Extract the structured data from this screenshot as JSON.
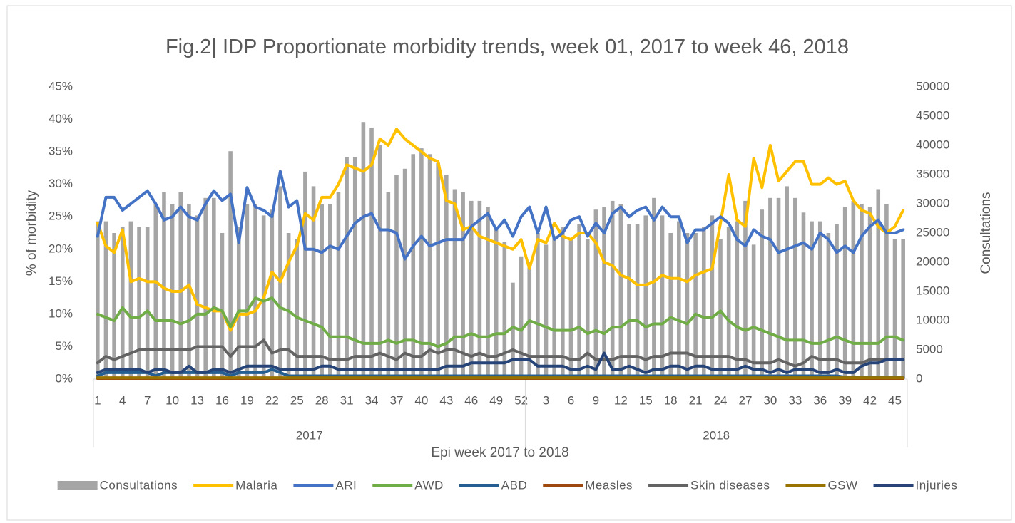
{
  "chart_data": {
    "type": "combo",
    "title": "Fig.2| IDP Proportionate morbidity trends, week 01, 2017 to week 46, 2018",
    "x_label": "Epi week 2017 to 2018",
    "y_label": "% of morbidity",
    "y2_label": "Consultations",
    "groups": [
      {
        "name": "2017",
        "categories": [
          1,
          null,
          null,
          4,
          null,
          null,
          7,
          null,
          null,
          10,
          null,
          null,
          13,
          null,
          null,
          16,
          null,
          null,
          19,
          null,
          null,
          22,
          null,
          null,
          25,
          null,
          null,
          28,
          null,
          null,
          31,
          null,
          null,
          34,
          null,
          null,
          37,
          null,
          null,
          40,
          null,
          null,
          43,
          null,
          null,
          46,
          null,
          null,
          49,
          null,
          null,
          52
        ]
      },
      {
        "name": "2018",
        "categories": [
          null,
          null,
          3,
          null,
          null,
          6,
          null,
          null,
          9,
          null,
          null,
          12,
          null,
          null,
          15,
          null,
          null,
          18,
          null,
          null,
          21,
          null,
          null,
          24,
          null,
          null,
          27,
          null,
          null,
          30,
          null,
          null,
          33,
          null,
          null,
          36,
          null,
          null,
          39,
          null,
          null,
          42,
          null,
          null,
          45,
          null
        ]
      }
    ],
    "ylim": [
      0,
      45
    ],
    "yticks": [
      {
        "value": 0,
        "label": "0%"
      },
      {
        "value": 5,
        "label": "5%"
      },
      {
        "value": 10,
        "label": "10%"
      },
      {
        "value": 15,
        "label": "15%"
      },
      {
        "value": 20,
        "label": "20%"
      },
      {
        "value": 25,
        "label": "25%"
      },
      {
        "value": 30,
        "label": "30%"
      },
      {
        "value": 35,
        "label": "35%"
      },
      {
        "value": 40,
        "label": "40%"
      },
      {
        "value": 45,
        "label": "45%"
      }
    ],
    "y2lim": [
      0,
      50000
    ],
    "y2ticks": [
      0,
      5000,
      10000,
      15000,
      20000,
      25000,
      30000,
      35000,
      40000,
      45000,
      50000
    ],
    "grid": false,
    "legend": "bottom",
    "series": [
      {
        "name": "Consultations",
        "type": "bar",
        "axis": "y2",
        "color": "#a5a5a5",
        "values": [
          27000,
          27000,
          25000,
          26000,
          27000,
          26000,
          26000,
          30000,
          32000,
          30000,
          32000,
          30000,
          28000,
          31000,
          31000,
          25000,
          39000,
          26000,
          30000,
          30000,
          28000,
          29000,
          33000,
          25000,
          24000,
          35500,
          33000,
          30000,
          30000,
          32000,
          38000,
          38000,
          44000,
          43000,
          40000,
          32000,
          35000,
          36000,
          38500,
          39500,
          38500,
          37000,
          35000,
          32500,
          32000,
          30500,
          30500,
          29500,
          26000,
          23500,
          16500,
          21000,
          20000,
          25000,
          23000,
          24500,
          26000,
          24000,
          26500,
          24000,
          29000,
          29500,
          30500,
          30000,
          26500,
          26500,
          28000,
          31000,
          28000,
          25000,
          27000,
          25000,
          25000,
          26000,
          28000,
          24000,
          26000,
          27000,
          30500,
          23000,
          29000,
          31000,
          31000,
          33000,
          31000,
          28500,
          27000,
          27000,
          25000,
          26500,
          29500,
          30500,
          30000,
          29500,
          32500,
          30000,
          24000,
          24000
        ]
      },
      {
        "name": "Malaria",
        "type": "line",
        "color": "#ffc000",
        "values": [
          24,
          20.5,
          19.5,
          23,
          15,
          15.5,
          15,
          15,
          14,
          13.5,
          13.5,
          14.5,
          11.5,
          11,
          10.5,
          10.5,
          7.5,
          10,
          10,
          10.5,
          12.5,
          16.5,
          15,
          18,
          20.5,
          25.5,
          24.5,
          28,
          28,
          30,
          33,
          32.5,
          32,
          33,
          37,
          36,
          38.5,
          37,
          36,
          35,
          34,
          33.5,
          27.5,
          27,
          23,
          23.5,
          22,
          21.5,
          21,
          20.5,
          20,
          21.5,
          17,
          21.5,
          21,
          24,
          22,
          21.5,
          22.5,
          22.5,
          21,
          18,
          17.5,
          16,
          15.5,
          14.5,
          14.5,
          15,
          16,
          15.5,
          15.5,
          15,
          16,
          16.5,
          17,
          24,
          31.5,
          24.5,
          23.5,
          34,
          29.5,
          36,
          30.5,
          32,
          33.5,
          33.5,
          30,
          30,
          31,
          30,
          30.5,
          27.5,
          26,
          25.5,
          23.5,
          22.5,
          23.5,
          26
        ]
      },
      {
        "name": "ARI",
        "type": "line",
        "color": "#4472c4",
        "values": [
          22,
          28,
          28,
          26,
          27,
          28,
          29,
          27,
          24.5,
          25,
          26.5,
          25,
          24.5,
          27,
          29,
          27.5,
          28.5,
          21,
          29.5,
          26.5,
          26,
          25,
          32,
          26.5,
          27.5,
          20,
          20,
          19.5,
          20.5,
          20,
          22,
          24,
          25,
          25.5,
          23,
          23,
          22.5,
          18.5,
          20.5,
          22,
          20.5,
          21,
          21.5,
          21.5,
          21.5,
          23.5,
          24.5,
          25.5,
          23,
          24.5,
          22,
          25,
          26.5,
          22.5,
          26.5,
          21.5,
          22.5,
          24.5,
          25,
          22,
          24,
          22.5,
          25.5,
          26.5,
          25,
          26,
          26.5,
          24.5,
          26.5,
          25,
          25,
          21,
          23,
          23,
          24,
          25,
          24,
          21.5,
          20.5,
          23,
          22,
          21.5,
          19.5,
          20,
          20.5,
          21,
          20,
          22.5,
          21.5,
          19.5,
          20.5,
          19.5,
          22,
          23.5,
          24.5,
          22.5,
          22.5,
          23
        ]
      },
      {
        "name": "AWD",
        "type": "line",
        "color": "#70ad47",
        "values": [
          10,
          9.5,
          9,
          11,
          9.5,
          9.5,
          10.5,
          9,
          9,
          9,
          8.5,
          9,
          10,
          10,
          11,
          10.5,
          8,
          10.5,
          10.5,
          12.5,
          12,
          12.5,
          11,
          10.5,
          9.5,
          9,
          8.5,
          8,
          6.5,
          6.5,
          6.5,
          6,
          5.5,
          5.5,
          5.5,
          6,
          5.5,
          6,
          6,
          5.5,
          5.5,
          5,
          5.5,
          6.5,
          6.5,
          7,
          6.5,
          6.5,
          7,
          7,
          8,
          7.5,
          9,
          8.5,
          8,
          7.5,
          7.5,
          7.5,
          8,
          7,
          7.5,
          7,
          8,
          8,
          9,
          9,
          8,
          8.5,
          8.5,
          9.5,
          9,
          8.5,
          10,
          9.5,
          9.5,
          10.5,
          9,
          8,
          7.5,
          8,
          7.5,
          7,
          6.5,
          6,
          6,
          6,
          5.5,
          5.5,
          6,
          6.5,
          6,
          5.5,
          5.5,
          5.5,
          5.5,
          6.5,
          6.5,
          6
        ]
      },
      {
        "name": "ABD",
        "type": "line",
        "color": "#255e91",
        "values": [
          0.5,
          1,
          1,
          1,
          1,
          1,
          1,
          0.5,
          1,
          1,
          1,
          1,
          1,
          1,
          1,
          1,
          0.5,
          1,
          1,
          1,
          1,
          1.5,
          1,
          0.5,
          0.5,
          0.5,
          0.5,
          0.5,
          0.5,
          0.5,
          0.5,
          0.5,
          0.5,
          0.5,
          0.5,
          0.5,
          0.5,
          0.5,
          0.5,
          0.5,
          0.5,
          0.5,
          0.5,
          0.5,
          0.5,
          0.5,
          0.5,
          0.5,
          0.5,
          0.5,
          0.5,
          0.5,
          0.5,
          0.5,
          0.5,
          0.5,
          0.5,
          0.5,
          0.5,
          0.5,
          0.5,
          0.5,
          0.5,
          0.5,
          0.5,
          0.5,
          0.5,
          0.5,
          0.5,
          0.5,
          0.5,
          0.5,
          0.5,
          0.5,
          0.5,
          0.5,
          0.5,
          0.5,
          0.5,
          0.5,
          0.5,
          0.5,
          0.5,
          0.5,
          0.5,
          0.5,
          0.5,
          0.5,
          0.5,
          0.5,
          0.3,
          0.3,
          0.3,
          0.3,
          0.3,
          0.3,
          0.3,
          0.3
        ]
      },
      {
        "name": "Measles",
        "type": "line",
        "color": "#9e480e",
        "values": [
          0.1,
          0.1,
          0.1,
          0.1,
          0.1,
          0.1,
          0.1,
          0.1,
          0.1,
          0.1,
          0.1,
          0.1,
          0.1,
          0.1,
          0.1,
          0.1,
          0.1,
          0.1,
          0.1,
          0.1,
          0.1,
          0.1,
          0.1,
          0.1,
          0.1,
          0.1,
          0.1,
          0.1,
          0.1,
          0.1,
          0.1,
          0.1,
          0.1,
          0.1,
          0.1,
          0.1,
          0.1,
          0.1,
          0.1,
          0.1,
          0.1,
          0.1,
          0.1,
          0.1,
          0.1,
          0.1,
          0.1,
          0.1,
          0.1,
          0.1,
          0.1,
          0.1,
          0.1,
          0.1,
          0.1,
          0.1,
          0.1,
          0.1,
          0.1,
          0.1,
          0.1,
          0.1,
          0.1,
          0.1,
          0.1,
          0.1,
          0.1,
          0.1,
          0.1,
          0.1,
          0.1,
          0.1,
          0.1,
          0.1,
          0.1,
          0.1,
          0.1,
          0.1,
          0.1,
          0.1,
          0.1,
          0.1,
          0.1,
          0.1,
          0.1,
          0.1,
          0.1,
          0.1,
          0.1,
          0.1,
          0.1,
          0.1,
          0.1,
          0.1,
          0.1,
          0.1,
          0.1,
          0.1
        ]
      },
      {
        "name": "Skin diseases",
        "type": "line",
        "color": "#636363",
        "values": [
          2.5,
          3.5,
          3,
          3.5,
          4,
          4.5,
          4.5,
          4.5,
          4.5,
          4.5,
          4.5,
          4.5,
          5,
          5,
          5,
          5,
          3.5,
          5,
          5,
          5,
          6,
          4,
          4.5,
          4.5,
          3.5,
          3.5,
          3.5,
          3.5,
          3,
          3,
          3,
          3.5,
          3.5,
          3.5,
          4,
          3.5,
          3,
          4,
          3.5,
          3.5,
          4.5,
          4,
          4.5,
          4.5,
          4,
          3.5,
          4,
          3.5,
          3.5,
          4,
          4.5,
          4,
          3.5,
          3.5,
          3.5,
          3.5,
          3.5,
          3,
          3,
          4,
          3,
          3,
          3,
          3.5,
          3.5,
          3.5,
          3,
          3.5,
          3.5,
          4,
          4,
          4,
          3.5,
          3.5,
          3.5,
          3.5,
          3.5,
          3,
          3,
          2.5,
          2.5,
          2.5,
          3,
          2.5,
          2,
          2.5,
          3.5,
          3,
          3,
          3,
          2.5,
          2.5,
          2.5,
          3,
          3,
          3,
          3,
          3
        ]
      },
      {
        "name": "GSW",
        "type": "line",
        "color": "#997300",
        "values": [
          0.2,
          0.2,
          0.2,
          0.2,
          0.2,
          0.2,
          0.2,
          0.2,
          0.2,
          0.2,
          0.2,
          0.2,
          0.2,
          0.2,
          0.2,
          0.2,
          0.2,
          0.2,
          0.2,
          0.2,
          0.2,
          0.2,
          0.2,
          0.2,
          0.2,
          0.2,
          0.2,
          0.2,
          0.2,
          0.2,
          0.2,
          0.2,
          0.2,
          0.2,
          0.2,
          0.2,
          0.2,
          0.2,
          0.2,
          0.2,
          0.2,
          0.2,
          0.2,
          0.2,
          0.2,
          0.2,
          0.2,
          0.2,
          0.2,
          0.2,
          0.2,
          0.2,
          0.2,
          0.2,
          0.2,
          0.2,
          0.2,
          0.2,
          0.2,
          0.2,
          0.2,
          0.2,
          0.2,
          0.2,
          0.2,
          0.2,
          0.2,
          0.2,
          0.2,
          0.2,
          0.2,
          0.2,
          0.2,
          0.2,
          0.2,
          0.2,
          0.2,
          0.2,
          0.2,
          0.2,
          0.2,
          0.2,
          0.2,
          0.2,
          0.2,
          0.2,
          0.2,
          0.2,
          0.2,
          0.2,
          0.2,
          0.2,
          0.2,
          0.2,
          0.2,
          0.2,
          0.2,
          0.2
        ]
      },
      {
        "name": "Injuries",
        "type": "line",
        "color": "#264478",
        "values": [
          1,
          1.5,
          1.5,
          1.5,
          1.5,
          1.5,
          1,
          1.5,
          1.5,
          1,
          1,
          2,
          1,
          1,
          1.5,
          1.5,
          1,
          1.5,
          2,
          2,
          2,
          2,
          1.5,
          1.5,
          1.5,
          1.5,
          1.5,
          2,
          2,
          1.5,
          1.5,
          1.5,
          1.5,
          1.5,
          1.5,
          1.5,
          1.5,
          1.5,
          1.5,
          1.5,
          1.5,
          1.5,
          2,
          2,
          2,
          2.5,
          2.5,
          2.5,
          2.5,
          2.5,
          3,
          3,
          3,
          2,
          2,
          2,
          2,
          1.5,
          1.5,
          2,
          1.5,
          4,
          1.5,
          1.5,
          2,
          1.5,
          1,
          1.5,
          1.5,
          2,
          2,
          1.5,
          2,
          2,
          1.5,
          1.5,
          1.5,
          1.5,
          2,
          1.5,
          1.5,
          1,
          1.5,
          1,
          1.5,
          1.5,
          1.5,
          1,
          1,
          1.5,
          1,
          1,
          2,
          2.5,
          2.5,
          3,
          3,
          3
        ]
      }
    ]
  }
}
